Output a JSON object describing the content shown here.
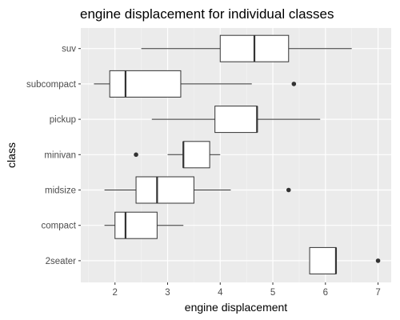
{
  "chart_data": {
    "type": "boxplot",
    "orientation": "horizontal",
    "title": "engine displacement for individual classes",
    "xlabel": "engine displacement",
    "ylabel": "class",
    "xlim": [
      1.35,
      7.25
    ],
    "xticks": [
      2,
      3,
      4,
      5,
      6,
      7
    ],
    "xtick_labels": [
      "2",
      "3",
      "4",
      "5",
      "6",
      "7"
    ],
    "grid": true,
    "colors": {
      "panel_background": "#ebebeb",
      "grid_major": "#ffffff",
      "box_fill": "#ffffff",
      "box_line": "#333333",
      "outlier": "#333333",
      "tick": "#333333"
    },
    "categories": [
      "suv",
      "subcompact",
      "pickup",
      "minivan",
      "midsize",
      "compact",
      "2seater"
    ],
    "boxes": [
      {
        "class": "suv",
        "whisker_low": 2.5,
        "q1": 4.0,
        "median": 4.65,
        "q3": 5.3,
        "whisker_high": 6.5,
        "outliers": []
      },
      {
        "class": "subcompact",
        "whisker_low": 1.6,
        "q1": 1.9,
        "median": 2.2,
        "q3": 3.25,
        "whisker_high": 4.6,
        "outliers": [
          5.4
        ]
      },
      {
        "class": "pickup",
        "whisker_low": 2.7,
        "q1": 3.9,
        "median": 4.7,
        "q3": 4.7,
        "whisker_high": 5.9,
        "outliers": []
      },
      {
        "class": "minivan",
        "whisker_low": 3.0,
        "q1": 3.3,
        "median": 3.3,
        "q3": 3.8,
        "whisker_high": 4.0,
        "outliers": [
          2.4
        ]
      },
      {
        "class": "midsize",
        "whisker_low": 1.8,
        "q1": 2.4,
        "median": 2.8,
        "q3": 3.5,
        "whisker_high": 4.2,
        "outliers": [
          5.3
        ]
      },
      {
        "class": "compact",
        "whisker_low": 1.8,
        "q1": 2.0,
        "median": 2.2,
        "q3": 2.8,
        "whisker_high": 3.3,
        "outliers": []
      },
      {
        "class": "2seater",
        "whisker_low": 5.7,
        "q1": 5.7,
        "median": 6.2,
        "q3": 6.2,
        "whisker_high": 6.2,
        "outliers": [
          7.0
        ]
      }
    ]
  }
}
